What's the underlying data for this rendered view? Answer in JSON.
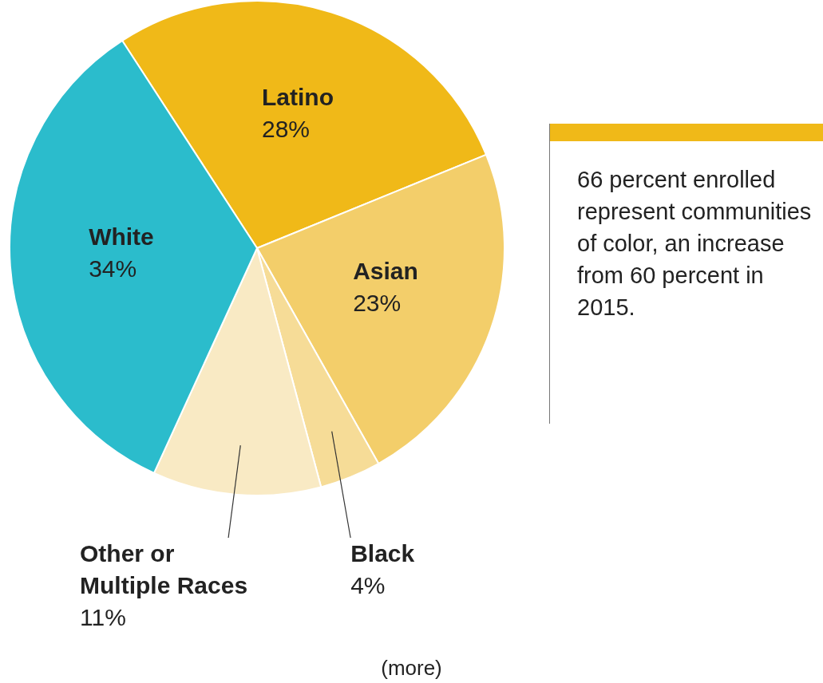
{
  "chart_data": {
    "type": "pie",
    "categories": [
      "Latino",
      "Asian",
      "Black",
      "Other or Multiple Races",
      "White"
    ],
    "values": [
      28,
      23,
      4,
      11,
      34
    ],
    "value_labels": [
      "28%",
      "23%",
      "4%",
      "11%",
      "34%"
    ],
    "colors": [
      "#f0b918",
      "#f3ce6a",
      "#f6dc97",
      "#f9eac4",
      "#2bbccc"
    ],
    "legend": false,
    "annotations": [
      "66 percent enrolled represent communities of color, an increase from 60 percent in 2015.",
      "(more)"
    ]
  }
}
